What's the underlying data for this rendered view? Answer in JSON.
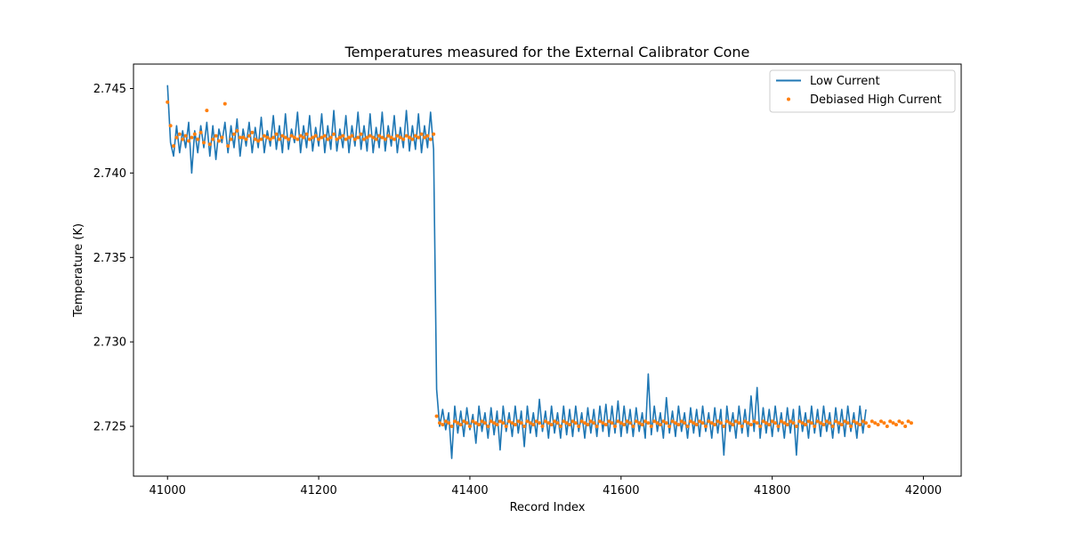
{
  "chart_data": {
    "type": "line",
    "title": "Temperatures measured for the External Calibrator Cone",
    "xlabel": "Record Index",
    "ylabel": "Temperature (K)",
    "xlim": [
      40955,
      42050
    ],
    "ylim": [
      2.72205,
      2.74645
    ],
    "x_ticks": [
      41000,
      41200,
      41400,
      41600,
      41800,
      42000
    ],
    "x_tick_labels": [
      "41000",
      "41200",
      "41400",
      "41600",
      "41800",
      "42000"
    ],
    "y_ticks": [
      2.725,
      2.73,
      2.735,
      2.74,
      2.745
    ],
    "y_tick_labels": [
      "2.725",
      "2.730",
      "2.735",
      "2.740",
      "2.745"
    ],
    "legend_position": "top-right",
    "series": [
      {
        "name": "Low Current",
        "style": "line",
        "color": "#1f77b4",
        "x_start": 41000,
        "x_step": 4,
        "values": [
          2.7452,
          2.7418,
          2.741,
          2.7428,
          2.7412,
          2.7425,
          2.7415,
          2.743,
          2.74,
          2.7425,
          2.7412,
          2.7428,
          2.7415,
          2.743,
          2.741,
          2.7428,
          2.7408,
          2.7426,
          2.7418,
          2.743,
          2.7412,
          2.7428,
          2.7415,
          2.7432,
          2.741,
          2.7426,
          2.7416,
          2.743,
          2.7412,
          2.7427,
          2.7415,
          2.7433,
          2.7412,
          2.7425,
          2.7416,
          2.7434,
          2.7414,
          2.7428,
          2.7412,
          2.7435,
          2.7414,
          2.7426,
          2.7418,
          2.7436,
          2.7412,
          2.7428,
          2.7415,
          2.7434,
          2.7413,
          2.7427,
          2.7416,
          2.7435,
          2.7412,
          2.7428,
          2.7414,
          2.7437,
          2.7413,
          2.7426,
          2.7415,
          2.7434,
          2.7412,
          2.7428,
          2.7416,
          2.7436,
          2.7414,
          2.7428,
          2.7413,
          2.7435,
          2.7412,
          2.7427,
          2.7415,
          2.7436,
          2.7413,
          2.7428,
          2.7416,
          2.7434,
          2.7412,
          2.7427,
          2.7415,
          2.7437,
          2.7413,
          2.7428,
          2.7414,
          2.7435,
          2.7412,
          2.7428,
          2.7415,
          2.7436,
          2.7414,
          2.7272,
          2.725,
          2.726,
          2.7248,
          2.7258,
          2.7231,
          2.7262,
          2.7246,
          2.7259,
          2.7244,
          2.7261,
          2.7248,
          2.7257,
          2.724,
          2.7262,
          2.7247,
          2.7258,
          2.7243,
          2.7261,
          2.7245,
          2.7259,
          2.7236,
          2.7262,
          2.7247,
          2.7258,
          2.7244,
          2.7262,
          2.7246,
          2.7259,
          2.7238,
          2.7262,
          2.7246,
          2.7258,
          2.7244,
          2.7266,
          2.7247,
          2.7259,
          2.7243,
          2.7262,
          2.7246,
          2.7258,
          2.7243,
          2.7262,
          2.7245,
          2.726,
          2.7244,
          2.7262,
          2.7247,
          2.7258,
          2.7243,
          2.7261,
          2.7246,
          2.726,
          2.7244,
          2.7262,
          2.7247,
          2.7263,
          2.7244,
          2.7262,
          2.7246,
          2.7265,
          2.7244,
          2.7262,
          2.7246,
          2.726,
          2.7244,
          2.7261,
          2.7247,
          2.7258,
          2.7243,
          2.7281,
          2.7245,
          2.7262,
          2.7247,
          2.7258,
          2.7243,
          2.7267,
          2.7246,
          2.7259,
          2.7244,
          2.7262,
          2.7247,
          2.7258,
          2.7243,
          2.7261,
          2.7246,
          2.726,
          2.7244,
          2.7262,
          2.7247,
          2.7258,
          2.7243,
          2.7261,
          2.7246,
          2.726,
          2.7233,
          2.7262,
          2.7247,
          2.7258,
          2.7243,
          2.7262,
          2.7246,
          2.726,
          2.7244,
          2.7268,
          2.7247,
          2.7273,
          2.7243,
          2.7261,
          2.7246,
          2.726,
          2.7244,
          2.7262,
          2.7247,
          2.7258,
          2.7243,
          2.7261,
          2.7246,
          2.726,
          2.7233,
          2.7262,
          2.7247,
          2.7258,
          2.7243,
          2.7262,
          2.7246,
          2.726,
          2.7244,
          2.7262,
          2.7247,
          2.7258,
          2.7243,
          2.7261,
          2.7246,
          2.726,
          2.7244,
          2.7262,
          2.7247,
          2.7258,
          2.7243,
          2.7262,
          2.7246,
          2.726
        ]
      },
      {
        "name": "Debiased High Current",
        "style": "scatter",
        "color": "#ff7f0e",
        "x_start": 41000,
        "x_step": 4,
        "values": [
          2.7442,
          2.7428,
          2.7416,
          2.7421,
          2.7423,
          2.742,
          2.7422,
          2.7419,
          2.7421,
          2.7423,
          2.742,
          2.7424,
          2.7418,
          2.7437,
          2.7417,
          2.742,
          2.7422,
          2.7419,
          2.7421,
          2.7441,
          2.7416,
          2.742,
          2.7423,
          2.7425,
          2.7421,
          2.7421,
          2.742,
          2.7422,
          2.7424,
          2.742,
          2.7419,
          2.742,
          2.7422,
          2.7421,
          2.742,
          2.7421,
          2.7423,
          2.742,
          2.7422,
          2.7421,
          2.742,
          2.7422,
          2.7421,
          2.742,
          2.7422,
          2.7421,
          2.7423,
          2.742,
          2.7421,
          2.7422,
          2.742,
          2.7421,
          2.7422,
          2.742,
          2.7421,
          2.7423,
          2.742,
          2.7421,
          2.7422,
          2.742,
          2.7421,
          2.7422,
          2.742,
          2.7421,
          2.7423,
          2.742,
          2.7421,
          2.7422,
          2.7421,
          2.742,
          2.7422,
          2.7421,
          2.742,
          2.7422,
          2.7421,
          2.742,
          2.7422,
          2.7421,
          2.742,
          2.7422,
          2.7421,
          2.742,
          2.7422,
          2.7421,
          2.7423,
          2.7421,
          2.7422,
          2.742,
          2.7423,
          2.7256,
          2.7252,
          2.7251,
          2.7253,
          2.7252,
          2.725,
          2.7253,
          2.7252,
          2.7251,
          2.7253,
          2.7252,
          2.725,
          2.7253,
          2.7252,
          2.7251,
          2.7253,
          2.7252,
          2.725,
          2.7253,
          2.7252,
          2.7251,
          2.7253,
          2.7252,
          2.725,
          2.7253,
          2.7252,
          2.7251,
          2.7253,
          2.7252,
          2.725,
          2.7253,
          2.7252,
          2.7251,
          2.7253,
          2.7252,
          2.725,
          2.7253,
          2.7252,
          2.7251,
          2.7253,
          2.7252,
          2.725,
          2.7253,
          2.7252,
          2.7251,
          2.7253,
          2.7252,
          2.725,
          2.7253,
          2.7252,
          2.7251,
          2.7253,
          2.7252,
          2.725,
          2.7253,
          2.7252,
          2.7251,
          2.7253,
          2.7252,
          2.725,
          2.7253,
          2.7252,
          2.7251,
          2.7253,
          2.7252,
          2.725,
          2.7253,
          2.7252,
          2.7251,
          2.7253,
          2.7252,
          2.725,
          2.7253,
          2.7252,
          2.7251,
          2.7253,
          2.7252,
          2.725,
          2.7253,
          2.7252,
          2.7251,
          2.7253,
          2.7252,
          2.725,
          2.7253,
          2.7252,
          2.7251,
          2.7253,
          2.7252,
          2.725,
          2.7253,
          2.7252,
          2.7251,
          2.7253,
          2.7252,
          2.725,
          2.7253,
          2.7252,
          2.7251,
          2.7253,
          2.7252,
          2.725,
          2.7253,
          2.7252,
          2.7251,
          2.7253,
          2.7252,
          2.725,
          2.7253,
          2.7252,
          2.7251,
          2.7253,
          2.7252,
          2.725,
          2.7253,
          2.7252,
          2.7251,
          2.7253,
          2.7252,
          2.725,
          2.7253,
          2.7252,
          2.7251,
          2.7253,
          2.7252,
          2.725,
          2.7253,
          2.7252,
          2.7251,
          2.7253,
          2.7252,
          2.725,
          2.7253,
          2.7252,
          2.7251,
          2.7253,
          2.7252,
          2.725,
          2.7253,
          2.7252,
          2.7251,
          2.7253,
          2.7252,
          2.725,
          2.7253,
          2.7252,
          2.7251,
          2.7253,
          2.7252,
          2.725,
          2.7253,
          2.7252,
          2.7251,
          2.7253,
          2.7252,
          2.725,
          2.7253,
          2.7252
        ]
      }
    ]
  }
}
